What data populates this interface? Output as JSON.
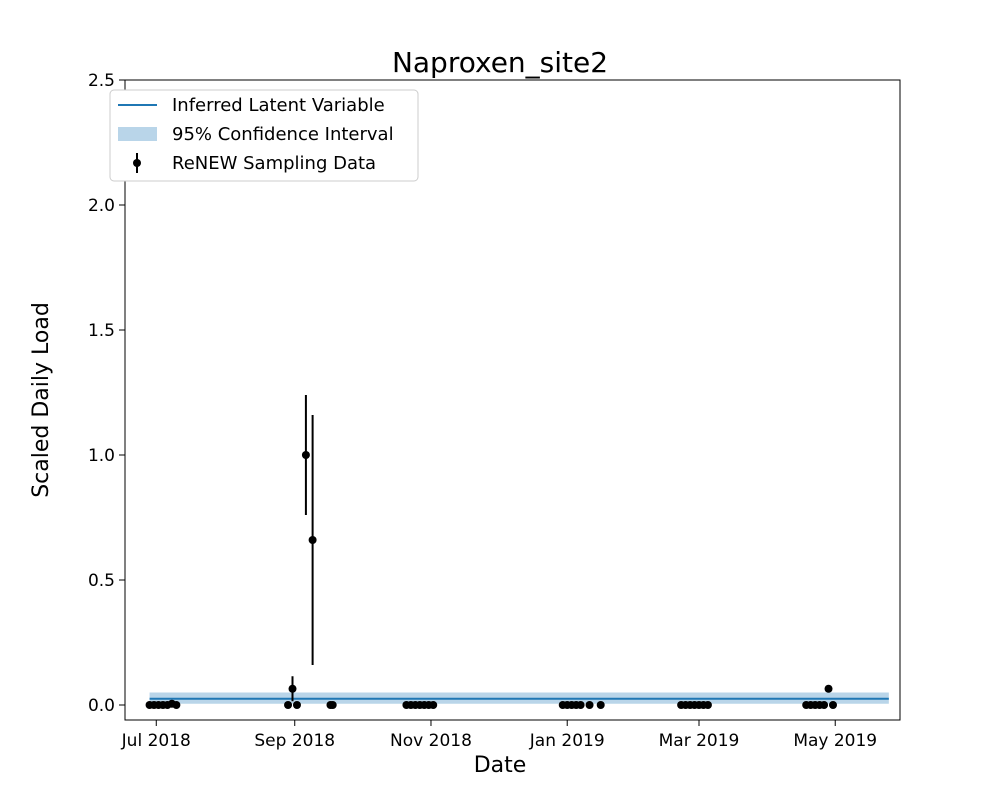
{
  "chart_data": {
    "type": "scatter",
    "title": "Naproxen_site2",
    "xlabel": "Date",
    "ylabel": "Scaled Daily Load",
    "xlim": [
      "2018-06-17",
      "2019-05-30"
    ],
    "ylim": [
      -0.06,
      2.5
    ],
    "x_tick_labels": [
      {
        "date": "2018-07-01",
        "label": "Jul 2018"
      },
      {
        "date": "2018-09-01",
        "label": "Sep 2018"
      },
      {
        "date": "2018-11-01",
        "label": "Nov 2018"
      },
      {
        "date": "2019-01-01",
        "label": "Jan 2019"
      },
      {
        "date": "2019-03-01",
        "label": "Mar 2019"
      },
      {
        "date": "2019-05-01",
        "label": "May 2019"
      }
    ],
    "y_tick_labels": [
      {
        "value": 0.0,
        "label": "0.0"
      },
      {
        "value": 0.5,
        "label": "0.5"
      },
      {
        "value": 1.0,
        "label": "1.0"
      },
      {
        "value": 1.5,
        "label": "1.5"
      },
      {
        "value": 2.0,
        "label": "2.0"
      },
      {
        "value": 2.5,
        "label": "2.5"
      }
    ],
    "grid": false,
    "legend": {
      "position": "top-left",
      "entries": [
        "Inferred Latent Variable",
        "95% Confidence Interval",
        "ReNEW Sampling Data"
      ]
    },
    "colors": {
      "latent_line": "#1f77b4",
      "confidence_band": "#b9d5e9",
      "sampling_points": "#000000"
    },
    "latent_variable": {
      "name": "Inferred Latent Variable",
      "x_start": "2018-06-28",
      "x_end": "2019-05-25",
      "value": 0.025,
      "ci_lower": 0.005,
      "ci_upper": 0.05
    },
    "sampling_data": {
      "name": "ReNEW Sampling Data",
      "points": [
        {
          "x": "2018-06-28",
          "y": 0.0
        },
        {
          "x": "2018-06-30",
          "y": 0.0
        },
        {
          "x": "2018-07-02",
          "y": 0.0
        },
        {
          "x": "2018-07-04",
          "y": 0.0
        },
        {
          "x": "2018-07-06",
          "y": 0.0
        },
        {
          "x": "2018-07-08",
          "y": 0.005
        },
        {
          "x": "2018-07-10",
          "y": 0.0
        },
        {
          "x": "2018-08-29",
          "y": 0.0
        },
        {
          "x": "2018-08-31",
          "y": 0.065,
          "err": 0.05
        },
        {
          "x": "2018-09-02",
          "y": 0.0
        },
        {
          "x": "2018-09-06",
          "y": 1.0,
          "err": 0.24
        },
        {
          "x": "2018-09-09",
          "y": 0.66,
          "err": 0.5
        },
        {
          "x": "2018-09-17",
          "y": 0.0
        },
        {
          "x": "2018-09-18",
          "y": 0.0
        },
        {
          "x": "2018-10-21",
          "y": 0.0
        },
        {
          "x": "2018-10-23",
          "y": 0.0
        },
        {
          "x": "2018-10-25",
          "y": 0.0
        },
        {
          "x": "2018-10-27",
          "y": 0.0
        },
        {
          "x": "2018-10-29",
          "y": 0.0
        },
        {
          "x": "2018-10-31",
          "y": 0.0
        },
        {
          "x": "2018-11-02",
          "y": 0.0
        },
        {
          "x": "2018-12-30",
          "y": 0.0
        },
        {
          "x": "2019-01-01",
          "y": 0.0
        },
        {
          "x": "2019-01-03",
          "y": 0.0
        },
        {
          "x": "2019-01-05",
          "y": 0.0
        },
        {
          "x": "2019-01-07",
          "y": 0.0
        },
        {
          "x": "2019-01-11",
          "y": 0.0
        },
        {
          "x": "2019-01-16",
          "y": 0.0
        },
        {
          "x": "2019-02-21",
          "y": 0.0
        },
        {
          "x": "2019-02-23",
          "y": 0.0
        },
        {
          "x": "2019-02-25",
          "y": 0.0
        },
        {
          "x": "2019-02-27",
          "y": 0.0
        },
        {
          "x": "2019-03-01",
          "y": 0.0
        },
        {
          "x": "2019-03-03",
          "y": 0.0
        },
        {
          "x": "2019-03-05",
          "y": 0.0
        },
        {
          "x": "2019-04-18",
          "y": 0.0
        },
        {
          "x": "2019-04-20",
          "y": 0.0
        },
        {
          "x": "2019-04-22",
          "y": 0.0
        },
        {
          "x": "2019-04-24",
          "y": 0.0
        },
        {
          "x": "2019-04-26",
          "y": 0.0
        },
        {
          "x": "2019-04-28",
          "y": 0.065,
          "err": 0.015
        },
        {
          "x": "2019-04-30",
          "y": 0.0
        }
      ]
    }
  }
}
